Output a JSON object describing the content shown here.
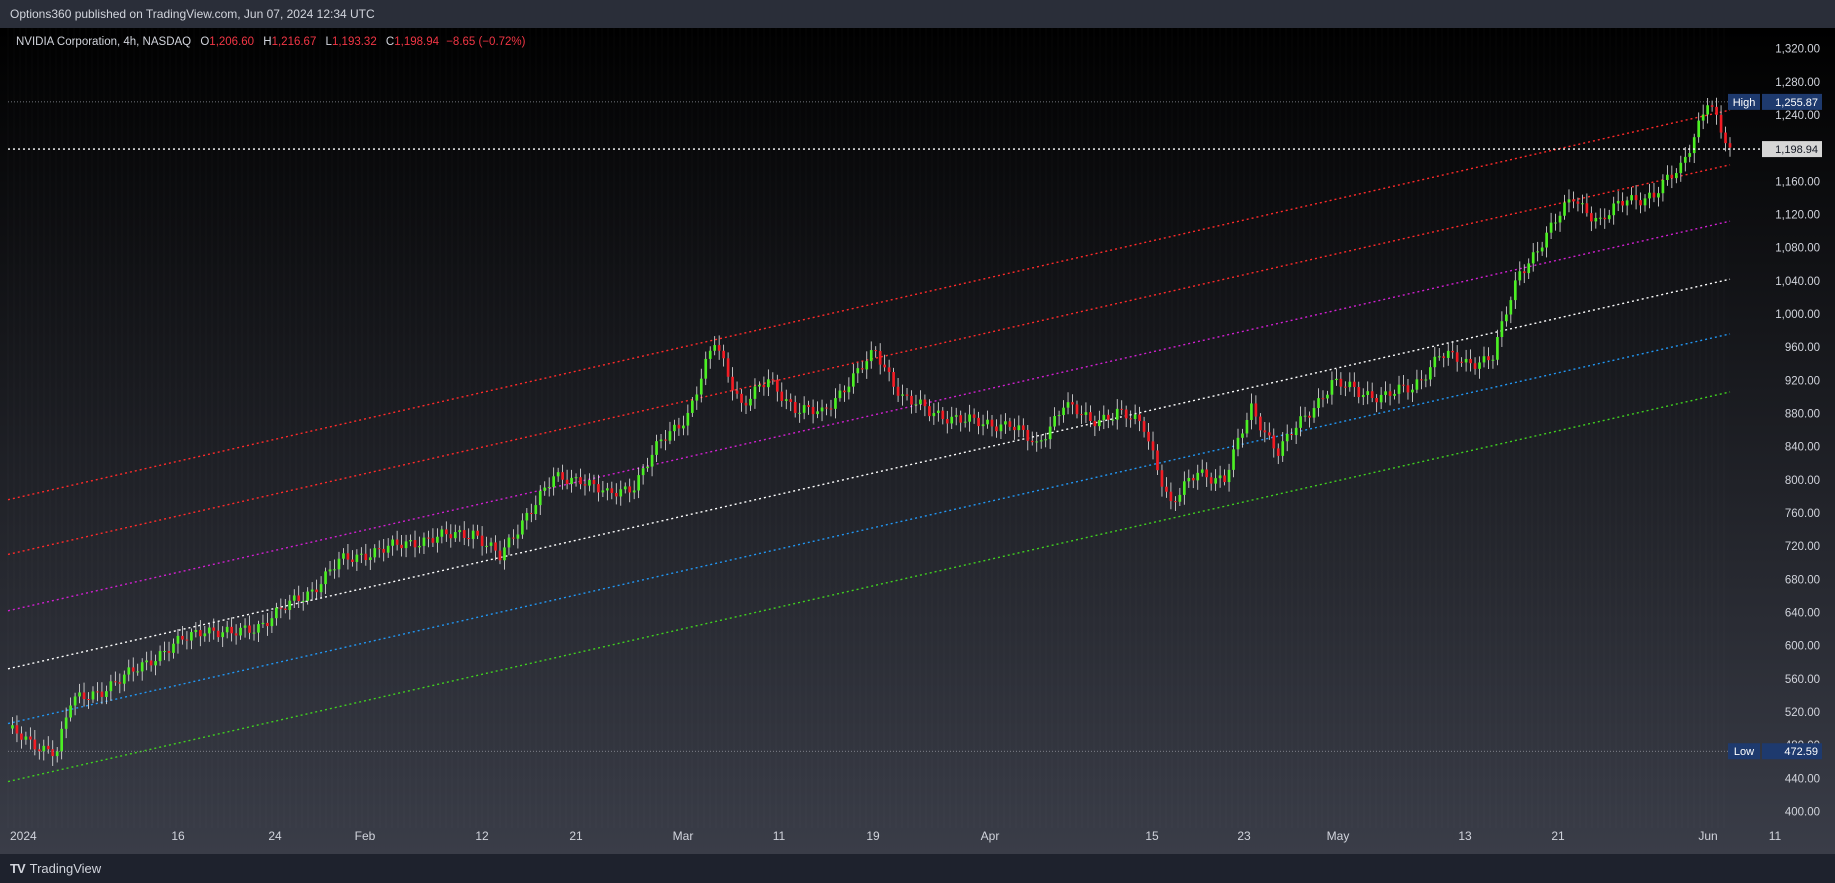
{
  "header": {
    "published_text": "Options360 published on TradingView.com, Jun 07, 2024 12:34 UTC"
  },
  "legend": {
    "symbol": "NVIDIA Corporation, 4h, NASDAQ",
    "open_label": "O",
    "open": "1,206.60",
    "high_label": "H",
    "high": "1,216.67",
    "low_label": "L",
    "low": "1,193.32",
    "close_label": "C",
    "close": "1,198.94",
    "change": "−8.65 (−0.72%)"
  },
  "footer": {
    "brand": "TradingView"
  },
  "colors": {
    "bg_top": "#000000",
    "bg_bottom": "#3a3d48",
    "up": "#4cef24",
    "down": "#f21c24",
    "wick": "#e6e6e6",
    "ch_red": "#ff2a2a",
    "ch_magenta": "#d020d0",
    "ch_white": "#ffffff",
    "ch_blue": "#2196f3",
    "ch_green": "#40d020",
    "high_badge": "#1e3a6e",
    "price_badge": "#d6d6d6"
  },
  "chart_data": {
    "type": "line",
    "title": "NVIDIA Corporation, 4h, NASDAQ",
    "ylim": [
      380,
      1345
    ],
    "y_ticks": [
      "400.00",
      "440.00",
      "480.00",
      "520.00",
      "560.00",
      "600.00",
      "640.00",
      "680.00",
      "720.00",
      "760.00",
      "800.00",
      "840.00",
      "880.00",
      "920.00",
      "960.00",
      "1,000.00",
      "1,040.00",
      "1,080.00",
      "1,120.00",
      "1,160.00",
      "1,200.00",
      "1,240.00",
      "1,280.00",
      "1,320.00"
    ],
    "x_ticks": [
      "2024",
      "16",
      "24",
      "Feb",
      "12",
      "21",
      "Mar",
      "11",
      "19",
      "Apr",
      "15",
      "23",
      "May",
      "13",
      "21",
      "Jun",
      "11"
    ],
    "markers": {
      "high_label": "High",
      "high": "1,255.87",
      "low_label": "Low",
      "low": "472.59",
      "last_price": "1,198.94"
    },
    "channel_lines": [
      {
        "color": "red",
        "start": [
          0,
          776
        ],
        "end": [
          1,
          1246
        ]
      },
      {
        "color": "red",
        "start": [
          0,
          710
        ],
        "end": [
          1,
          1180
        ]
      },
      {
        "color": "magenta",
        "start": [
          0,
          642
        ],
        "end": [
          1,
          1112
        ]
      },
      {
        "color": "white",
        "start": [
          0,
          572
        ],
        "end": [
          1,
          1042
        ]
      },
      {
        "color": "blue",
        "start": [
          0,
          506
        ],
        "end": [
          1,
          976
        ]
      },
      {
        "color": "green",
        "start": [
          0,
          436
        ],
        "end": [
          1,
          906
        ]
      }
    ],
    "series": [
      {
        "points": [
          [
            0,
            500
          ],
          [
            5,
            480
          ],
          [
            11,
            475
          ],
          [
            14,
            530
          ],
          [
            20,
            545
          ],
          [
            26,
            560
          ],
          [
            32,
            585
          ],
          [
            38,
            602
          ],
          [
            44,
            622
          ],
          [
            50,
            612
          ],
          [
            56,
            625
          ],
          [
            62,
            645
          ],
          [
            68,
            668
          ],
          [
            74,
            700
          ],
          [
            80,
            712
          ],
          [
            86,
            718
          ],
          [
            92,
            728
          ],
          [
            98,
            731
          ],
          [
            104,
            738
          ],
          [
            110,
            705
          ],
          [
            116,
            760
          ],
          [
            122,
            800
          ],
          [
            128,
            803
          ],
          [
            134,
            780
          ],
          [
            140,
            795
          ],
          [
            146,
            845
          ],
          [
            152,
            880
          ],
          [
            158,
            965
          ],
          [
            164,
            892
          ],
          [
            170,
            918
          ],
          [
            176,
            888
          ],
          [
            182,
            878
          ],
          [
            188,
            920
          ],
          [
            194,
            952
          ],
          [
            200,
            902
          ],
          [
            206,
            880
          ],
          [
            212,
            876
          ],
          [
            218,
            865
          ],
          [
            224,
            870
          ],
          [
            230,
            838
          ],
          [
            236,
            894
          ],
          [
            242,
            868
          ],
          [
            248,
            884
          ],
          [
            254,
            862
          ],
          [
            260,
            771
          ],
          [
            266,
            808
          ],
          [
            272,
            802
          ],
          [
            278,
            885
          ],
          [
            284,
            835
          ],
          [
            290,
            875
          ],
          [
            296,
            918
          ],
          [
            302,
            905
          ],
          [
            308,
            902
          ],
          [
            314,
            910
          ],
          [
            320,
            952
          ],
          [
            326,
            940
          ],
          [
            332,
            950
          ],
          [
            338,
            1050
          ],
          [
            344,
            1095
          ],
          [
            350,
            1142
          ],
          [
            356,
            1110
          ],
          [
            362,
            1140
          ],
          [
            368,
            1142
          ],
          [
            374,
            1178
          ],
          [
            380,
            1256
          ],
          [
            385,
            1195
          ]
        ]
      }
    ]
  }
}
